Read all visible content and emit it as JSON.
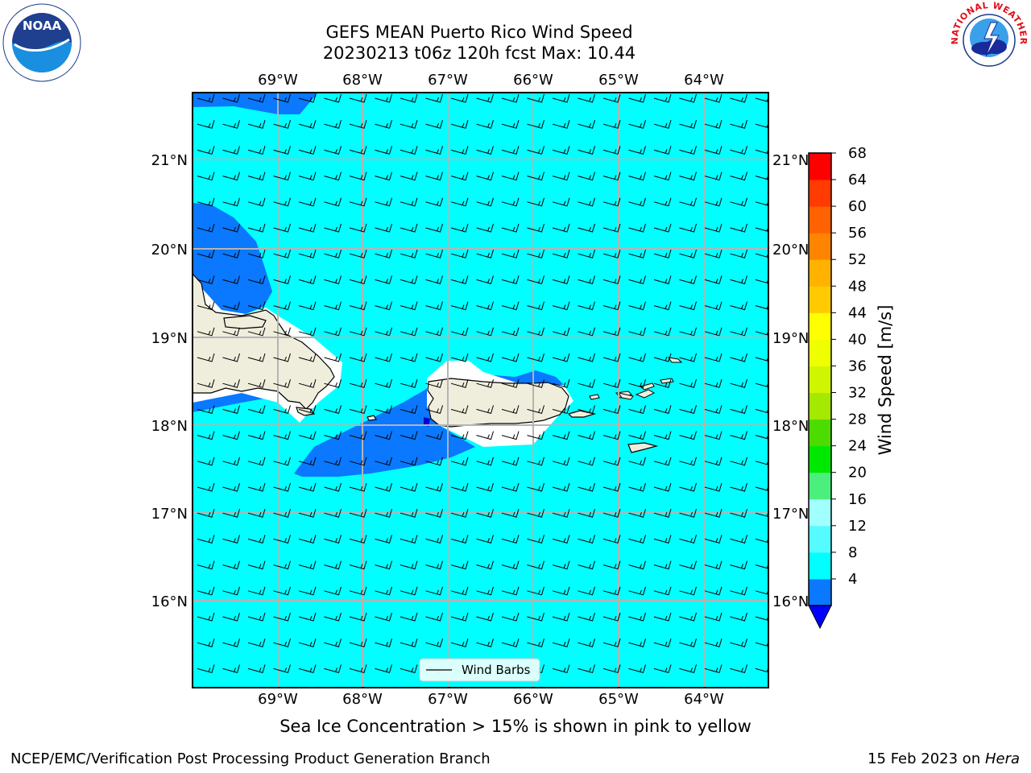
{
  "header": {
    "title": "GEFS MEAN Puerto Rico Wind Speed",
    "subtitle": "20230213 t06z 120h fcst   Max: 10.44"
  },
  "logos": {
    "left": "NOAA",
    "left_ring_text": "NATIONAL OCEANIC AND ATMOSPHERIC ADMINISTRATION · U.S. DEPARTMENT OF COMMERCE",
    "right_ring_text": "NATIONAL WEATHER SERVICE"
  },
  "map": {
    "lon_labels": [
      "69°W",
      "68°W",
      "67°W",
      "66°W",
      "65°W",
      "64°W"
    ],
    "lat_labels": [
      "21°N",
      "20°N",
      "19°N",
      "18°N",
      "17°N",
      "16°N"
    ],
    "legend_label": "Wind Barbs",
    "colors": {
      "ocean": "#00ffff",
      "wind_4_8": "#0a78ff",
      "land": "#efeddc",
      "min_arrow": "#0000ff"
    }
  },
  "colorbar": {
    "label": "Wind Speed [m/s]",
    "ticks": [
      "68",
      "64",
      "60",
      "56",
      "52",
      "48",
      "44",
      "40",
      "36",
      "32",
      "28",
      "24",
      "20",
      "16",
      "12",
      "8",
      "4"
    ],
    "colors": [
      "#0a78ff",
      "#00ffff",
      "#55fbff",
      "#a0ffff",
      "#4bef7d",
      "#00e800",
      "#4cdc00",
      "#a5e800",
      "#d0f500",
      "#efff00",
      "#ffff00",
      "#ffcb00",
      "#ffb300",
      "#ff8400",
      "#ff6200",
      "#ff3b00",
      "#ff0000"
    ]
  },
  "note": "Sea Ice Concentration > 15% is shown in pink to yellow",
  "footer": {
    "left": "NCEP/EMC/Verification Post Processing Product Generation Branch",
    "date": "15 Feb 2023 on ",
    "machine": "Hera"
  }
}
